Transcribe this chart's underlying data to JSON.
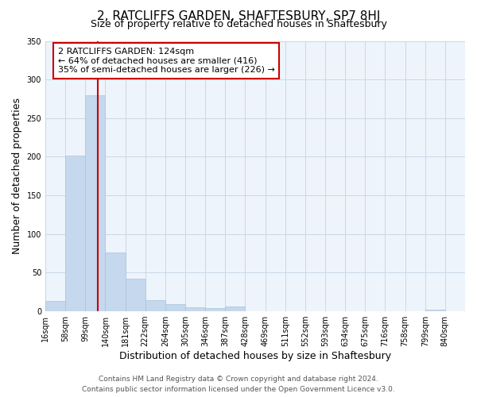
{
  "title": "2, RATCLIFFS GARDEN, SHAFTESBURY, SP7 8HJ",
  "subtitle": "Size of property relative to detached houses in Shaftesbury",
  "xlabel": "Distribution of detached houses by size in Shaftesbury",
  "ylabel": "Number of detached properties",
  "bin_labels": [
    "16sqm",
    "58sqm",
    "99sqm",
    "140sqm",
    "181sqm",
    "222sqm",
    "264sqm",
    "305sqm",
    "346sqm",
    "387sqm",
    "428sqm",
    "469sqm",
    "511sqm",
    "552sqm",
    "593sqm",
    "634sqm",
    "675sqm",
    "716sqm",
    "758sqm",
    "799sqm",
    "840sqm"
  ],
  "bar_heights": [
    13,
    201,
    280,
    76,
    42,
    14,
    9,
    5,
    4,
    6,
    0,
    0,
    0,
    0,
    0,
    0,
    0,
    0,
    0,
    2,
    0
  ],
  "bar_color": "#c5d8ed",
  "bar_edge_color": "#a8c4dc",
  "grid_color": "#c8d8e8",
  "background_color": "#eef4fb",
  "vline_color": "#cc0000",
  "annotation_line1": "2 RATCLIFFS GARDEN: 124sqm",
  "annotation_line2": "← 64% of detached houses are smaller (416)",
  "annotation_line3": "35% of semi-detached houses are larger (226) →",
  "annotation_box_color": "#ffffff",
  "annotation_box_edge": "#cc0000",
  "ylim": [
    0,
    350
  ],
  "yticks": [
    0,
    50,
    100,
    150,
    200,
    250,
    300,
    350
  ],
  "footer_line1": "Contains HM Land Registry data © Crown copyright and database right 2024.",
  "footer_line2": "Contains public sector information licensed under the Open Government Licence v3.0.",
  "title_fontsize": 11,
  "subtitle_fontsize": 9,
  "axis_label_fontsize": 9,
  "tick_fontsize": 7,
  "annotation_fontsize": 8,
  "footer_fontsize": 6.5
}
